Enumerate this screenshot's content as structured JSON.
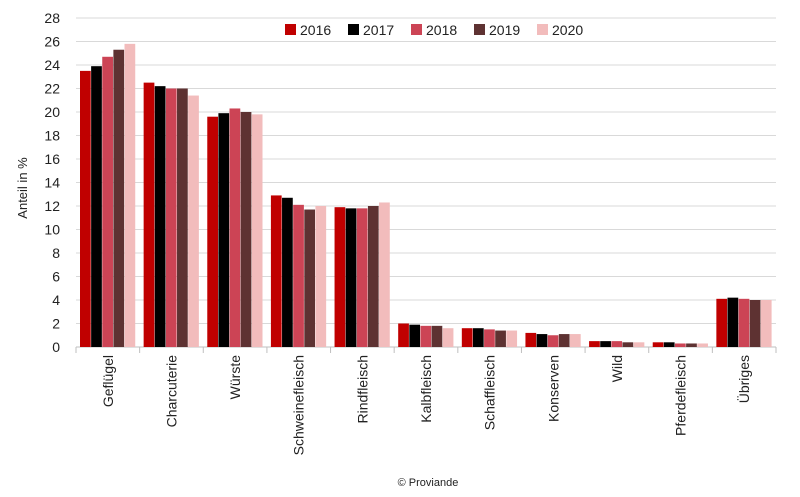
{
  "chart_data": {
    "type": "bar",
    "title": "",
    "xlabel": "",
    "ylabel": "Anteil in %",
    "ylim": [
      0,
      28
    ],
    "yticks": [
      0,
      2,
      4,
      6,
      8,
      10,
      12,
      14,
      16,
      18,
      20,
      22,
      24,
      26,
      28
    ],
    "grid": true,
    "legend_position": "top-center",
    "categories": [
      "Geflügel",
      "Charcuterie",
      "Würste",
      "Schweinefleisch",
      "Rindfleisch",
      "Kalbfleisch",
      "Schaffleisch",
      "Konserven",
      "Wild",
      "Pferdefleisch",
      "Übriges"
    ],
    "series": [
      {
        "name": "2016",
        "color": "#c00000",
        "values": [
          23.5,
          22.5,
          19.6,
          12.9,
          11.9,
          2.0,
          1.6,
          1.2,
          0.5,
          0.4,
          4.1
        ]
      },
      {
        "name": "2017",
        "color": "#000000",
        "values": [
          23.9,
          22.2,
          19.9,
          12.7,
          11.8,
          1.9,
          1.6,
          1.1,
          0.5,
          0.4,
          4.2
        ]
      },
      {
        "name": "2018",
        "color": "#cc4455",
        "values": [
          24.7,
          22.0,
          20.3,
          12.1,
          11.8,
          1.8,
          1.5,
          1.0,
          0.5,
          0.3,
          4.1
        ]
      },
      {
        "name": "2019",
        "color": "#5e3232",
        "values": [
          25.3,
          22.0,
          20.0,
          11.7,
          12.0,
          1.8,
          1.4,
          1.1,
          0.4,
          0.3,
          4.0
        ]
      },
      {
        "name": "2020",
        "color": "#f2bcbc",
        "values": [
          25.8,
          21.4,
          19.8,
          12.0,
          12.3,
          1.6,
          1.4,
          1.1,
          0.4,
          0.3,
          4.0
        ]
      }
    ]
  },
  "credit": "© Proviande"
}
